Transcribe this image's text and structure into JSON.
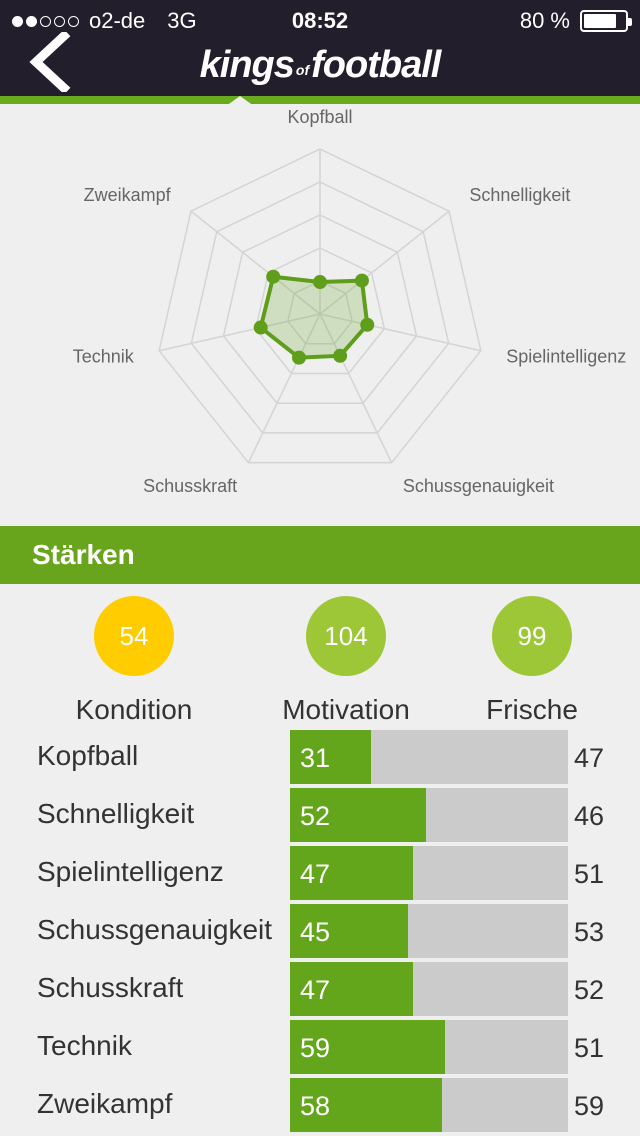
{
  "status_bar": {
    "carrier": "o2-de",
    "network": "3G",
    "time": "08:52",
    "battery_text": "80 %",
    "battery_level": 0.8,
    "signal_dots_filled": 2,
    "signal_dots_total": 5
  },
  "header": {
    "logo_part1": "kings",
    "logo_of": "of",
    "logo_part2": "football",
    "back_icon": "chevron-left-icon"
  },
  "radar": {
    "axes": [
      "Kopfball",
      "Schnelligkeit",
      "Spielintelligenz",
      "Schussgenauigkeit",
      "Schusskraft",
      "Technik",
      "Zweikampf"
    ],
    "values": [
      31,
      52,
      47,
      45,
      47,
      59,
      58
    ],
    "max": 160,
    "rings": 5,
    "color": "#5e9e1a"
  },
  "section": {
    "title": "Stärken"
  },
  "stats": [
    {
      "value": "54",
      "label": "Kondition",
      "color": "#ffcc00"
    },
    {
      "value": "104",
      "label": "Motivation",
      "color": "#9dc737"
    },
    {
      "value": "99",
      "label": "Frische",
      "color": "#9dc737"
    }
  ],
  "bars": {
    "max": 106,
    "rows": [
      {
        "label": "Kopfball",
        "value": 31,
        "other": 47
      },
      {
        "label": "Schnelligkeit",
        "value": 52,
        "other": 46
      },
      {
        "label": "Spielintelligenz",
        "value": 47,
        "other": 51
      },
      {
        "label": "Schussgenauigkeit",
        "value": 45,
        "other": 53
      },
      {
        "label": "Schusskraft",
        "value": 47,
        "other": 52
      },
      {
        "label": "Technik",
        "value": 59,
        "other": 51
      },
      {
        "label": "Zweikampf",
        "value": 58,
        "other": 59
      }
    ]
  }
}
